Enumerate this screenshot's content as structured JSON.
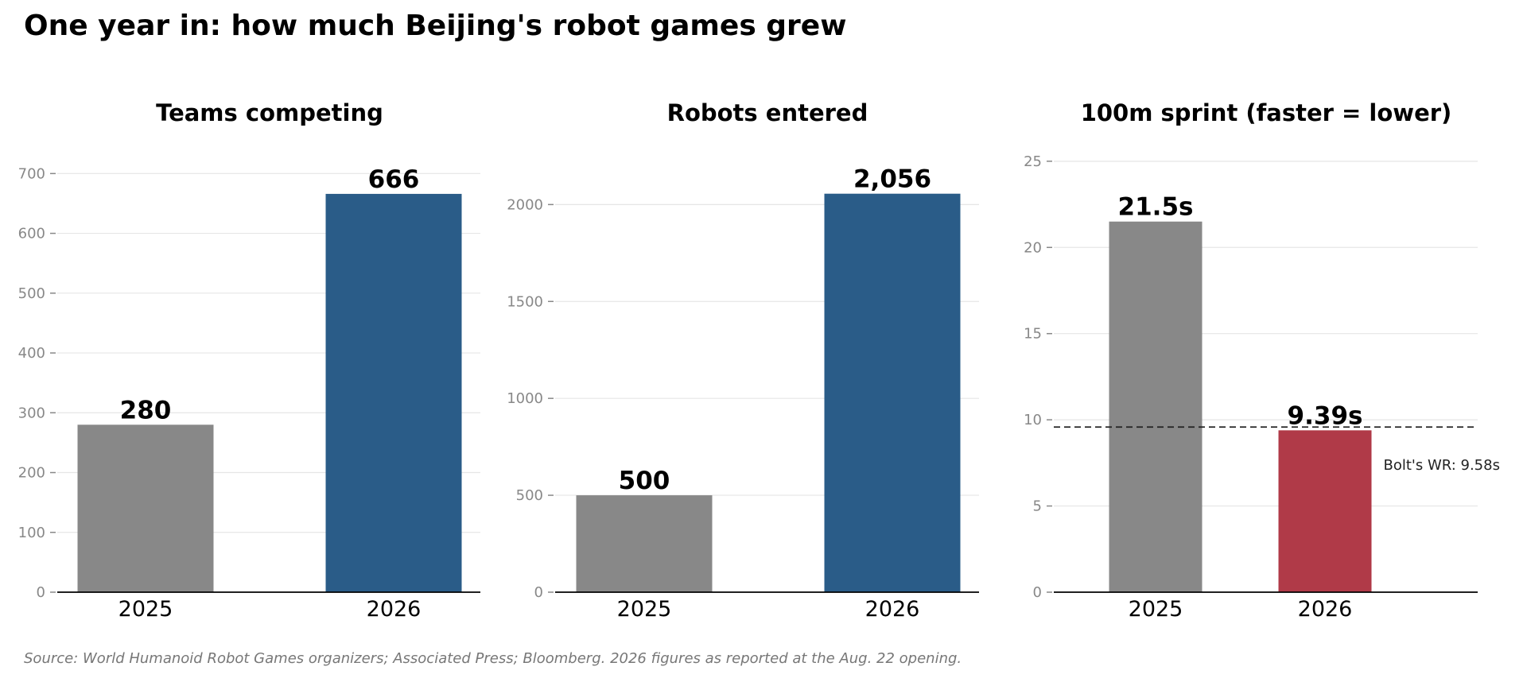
{
  "title": "One year in: how much Beijing's robot games grew",
  "source": "Source: World Humanoid Robot Games organizers; Associated Press; Bloomberg. 2026 figures as reported at the Aug. 22 opening.",
  "colors": {
    "gray": "#888888",
    "blue": "#2a5c88",
    "red": "#b03a48",
    "grid": "#e6e6e6",
    "tick": "#888888"
  },
  "chart_data": [
    {
      "type": "bar",
      "title": "Teams competing",
      "categories": [
        "2025",
        "2026"
      ],
      "values": [
        280,
        666
      ],
      "labels": [
        "280",
        "666"
      ],
      "bar_colors": [
        "#888888",
        "#2a5c88"
      ],
      "ylim": [
        0,
        735
      ],
      "yticks": [
        0,
        100,
        200,
        300,
        400,
        500,
        600,
        700
      ],
      "ytick_labels": [
        "0",
        "100",
        "200",
        "300",
        "400",
        "500",
        "600",
        "700"
      ],
      "grid": true
    },
    {
      "type": "bar",
      "title": "Robots entered",
      "categories": [
        "2025",
        "2026"
      ],
      "values": [
        500,
        2056
      ],
      "labels": [
        "500",
        "2,056"
      ],
      "bar_colors": [
        "#888888",
        "#2a5c88"
      ],
      "ylim": [
        0,
        2268
      ],
      "yticks": [
        0,
        500,
        1000,
        1500,
        2000
      ],
      "ytick_labels": [
        "0",
        "500",
        "1000",
        "1500",
        "2000"
      ],
      "grid": true
    },
    {
      "type": "bar",
      "title": "100m sprint (faster = lower)",
      "categories": [
        "2025",
        "2026"
      ],
      "values": [
        21.5,
        9.39
      ],
      "labels": [
        "21.5s",
        "9.39s"
      ],
      "bar_colors": [
        "#888888",
        "#b03a48"
      ],
      "ylim": [
        0,
        25.5
      ],
      "yticks": [
        0,
        5,
        10,
        15,
        20,
        25
      ],
      "ytick_labels": [
        "0",
        "5",
        "10",
        "15",
        "20",
        "25"
      ],
      "grid": true,
      "reference_line": {
        "value": 9.58,
        "label": "Bolt's WR: 9.58s",
        "style": "dashed"
      }
    }
  ]
}
